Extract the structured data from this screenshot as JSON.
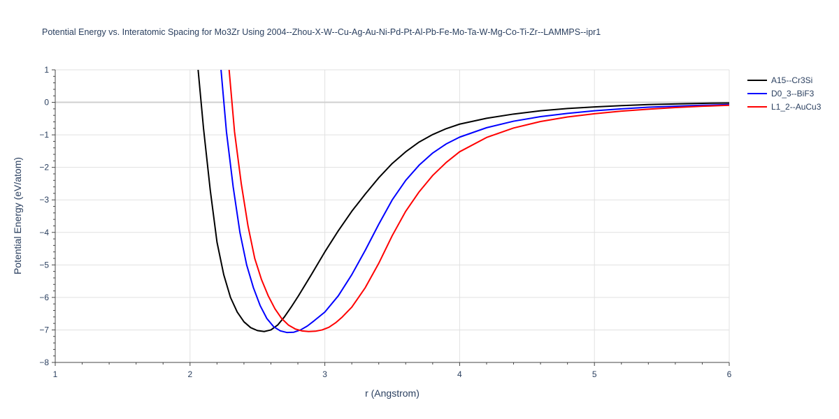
{
  "chart_data": {
    "type": "line",
    "title": "Potential Energy vs. Interatomic Spacing for Mo3Zr Using 2004--Zhou-X-W--Cu-Ag-Au-Ni-Pd-Pt-Al-Pb-Fe-Mo-Ta-W-Mg-Co-Ti-Zr--LAMMPS--ipr1",
    "xlabel": "r (Angstrom)",
    "ylabel": "Potential Energy (eV/atom)",
    "xlim": [
      1,
      6
    ],
    "ylim": [
      -8,
      1
    ],
    "x_ticks": [
      1,
      2,
      3,
      4,
      5,
      6
    ],
    "y_ticks": [
      1,
      0,
      -1,
      -2,
      -3,
      -4,
      -5,
      -6,
      -7,
      -8
    ],
    "grid": true,
    "legend_position": "top-right",
    "series": [
      {
        "name": "A15--Cr3Si",
        "color": "#000000",
        "x": [
          2.06,
          2.1,
          2.15,
          2.2,
          2.25,
          2.3,
          2.35,
          2.4,
          2.45,
          2.5,
          2.55,
          2.6,
          2.65,
          2.7,
          2.75,
          2.8,
          2.9,
          3.0,
          3.1,
          3.2,
          3.3,
          3.4,
          3.5,
          3.6,
          3.7,
          3.8,
          3.9,
          4.0,
          4.2,
          4.4,
          4.6,
          4.8,
          5.0,
          5.2,
          5.4,
          5.6,
          5.8,
          6.0
        ],
        "y": [
          1.0,
          -0.8,
          -2.7,
          -4.3,
          -5.3,
          -6.0,
          -6.45,
          -6.75,
          -6.93,
          -7.02,
          -7.05,
          -7.0,
          -6.85,
          -6.6,
          -6.3,
          -5.98,
          -5.3,
          -4.6,
          -3.95,
          -3.35,
          -2.82,
          -2.32,
          -1.88,
          -1.52,
          -1.22,
          -0.99,
          -0.81,
          -0.67,
          -0.49,
          -0.36,
          -0.26,
          -0.19,
          -0.14,
          -0.1,
          -0.07,
          -0.05,
          -0.03,
          -0.02
        ]
      },
      {
        "name": "D0_3--BiF3",
        "color": "#0000ff",
        "x": [
          2.23,
          2.27,
          2.32,
          2.37,
          2.42,
          2.47,
          2.52,
          2.57,
          2.62,
          2.67,
          2.72,
          2.77,
          2.82,
          2.87,
          2.92,
          3.0,
          3.1,
          3.2,
          3.3,
          3.4,
          3.5,
          3.6,
          3.7,
          3.8,
          3.9,
          4.0,
          4.2,
          4.4,
          4.6,
          4.8,
          5.0,
          5.2,
          5.4,
          5.6,
          5.8,
          6.0
        ],
        "y": [
          1.0,
          -0.9,
          -2.6,
          -4.0,
          -5.0,
          -5.7,
          -6.25,
          -6.65,
          -6.9,
          -7.03,
          -7.08,
          -7.07,
          -7.0,
          -6.88,
          -6.72,
          -6.45,
          -5.95,
          -5.3,
          -4.55,
          -3.75,
          -3.0,
          -2.4,
          -1.93,
          -1.56,
          -1.28,
          -1.07,
          -0.78,
          -0.58,
          -0.44,
          -0.34,
          -0.26,
          -0.2,
          -0.15,
          -0.12,
          -0.09,
          -0.07
        ]
      },
      {
        "name": "L1_2--AuCu3",
        "color": "#ff0000",
        "x": [
          2.29,
          2.33,
          2.38,
          2.43,
          2.48,
          2.53,
          2.58,
          2.63,
          2.68,
          2.73,
          2.78,
          2.83,
          2.88,
          2.93,
          2.98,
          3.03,
          3.08,
          3.13,
          3.2,
          3.3,
          3.4,
          3.5,
          3.6,
          3.7,
          3.8,
          3.9,
          4.0,
          4.2,
          4.4,
          4.6,
          4.8,
          5.0,
          5.2,
          5.4,
          5.6,
          5.8,
          6.0
        ],
        "y": [
          1.0,
          -0.9,
          -2.5,
          -3.8,
          -4.8,
          -5.45,
          -5.95,
          -6.35,
          -6.65,
          -6.85,
          -6.97,
          -7.03,
          -7.05,
          -7.04,
          -7.0,
          -6.92,
          -6.78,
          -6.6,
          -6.3,
          -5.7,
          -4.95,
          -4.1,
          -3.35,
          -2.75,
          -2.25,
          -1.85,
          -1.52,
          -1.08,
          -0.79,
          -0.59,
          -0.45,
          -0.35,
          -0.27,
          -0.21,
          -0.16,
          -0.12,
          -0.09
        ]
      }
    ]
  }
}
